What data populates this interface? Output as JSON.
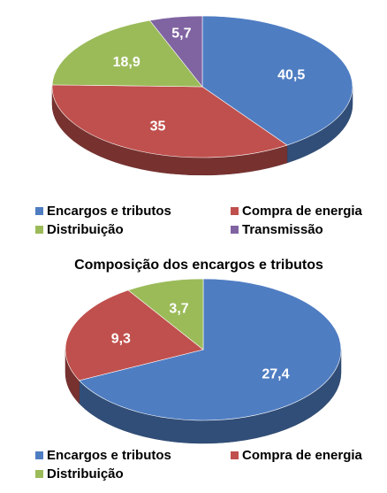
{
  "chart_data": [
    {
      "type": "pie",
      "title": "",
      "slices": [
        {
          "label": "Encargos e tributos",
          "value": 40.5,
          "display": "40,5",
          "color": "#4f7dc2"
        },
        {
          "label": "Compra de energia",
          "value": 35,
          "display": "35",
          "color": "#c0504d"
        },
        {
          "label": "Distribuição",
          "value": 18.9,
          "display": "18,9",
          "color": "#9bbb59"
        },
        {
          "label": "Transmissão",
          "value": 5.7,
          "display": "5,7",
          "color": "#8064a2"
        }
      ],
      "legend": {
        "placement": "bottom",
        "entries": [
          "Encargos e tributos",
          "Compra de energia",
          "Distribuição",
          "Transmissão"
        ]
      }
    },
    {
      "type": "pie",
      "title": "Composição dos encargos e tributos",
      "slices": [
        {
          "label": "Encargos e tributos",
          "value": 27.4,
          "display": "27,4",
          "color": "#4f7dc2"
        },
        {
          "label": "Compra de energia",
          "value": 9.3,
          "display": "9,3",
          "color": "#c0504d"
        },
        {
          "label": "Distribuição",
          "value": 3.7,
          "display": "3,7",
          "color": "#9bbb59"
        }
      ],
      "legend": {
        "placement": "bottom",
        "entries": [
          "Encargos e tributos",
          "Compra de energia",
          "Distribuição"
        ]
      }
    }
  ]
}
